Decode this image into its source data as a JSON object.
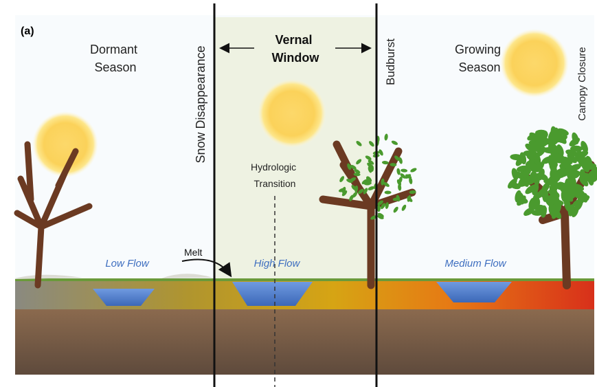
{
  "panel_label": "(a)",
  "phases": [
    {
      "lines": [
        "Dormant",
        "Season"
      ]
    },
    {
      "lines": [
        "Vernal",
        "Window"
      ]
    },
    {
      "lines": [
        "Growing",
        "Season"
      ]
    }
  ],
  "events": {
    "snow": "Snow Disappearance",
    "budburst": "Budburst",
    "canopy": "Canopy Closure"
  },
  "hydrologic_transition": [
    "Hydrologic",
    "Transition"
  ],
  "melt": "Melt",
  "flows": [
    "Low Flow",
    "High Flow",
    "Medium Flow"
  ]
}
